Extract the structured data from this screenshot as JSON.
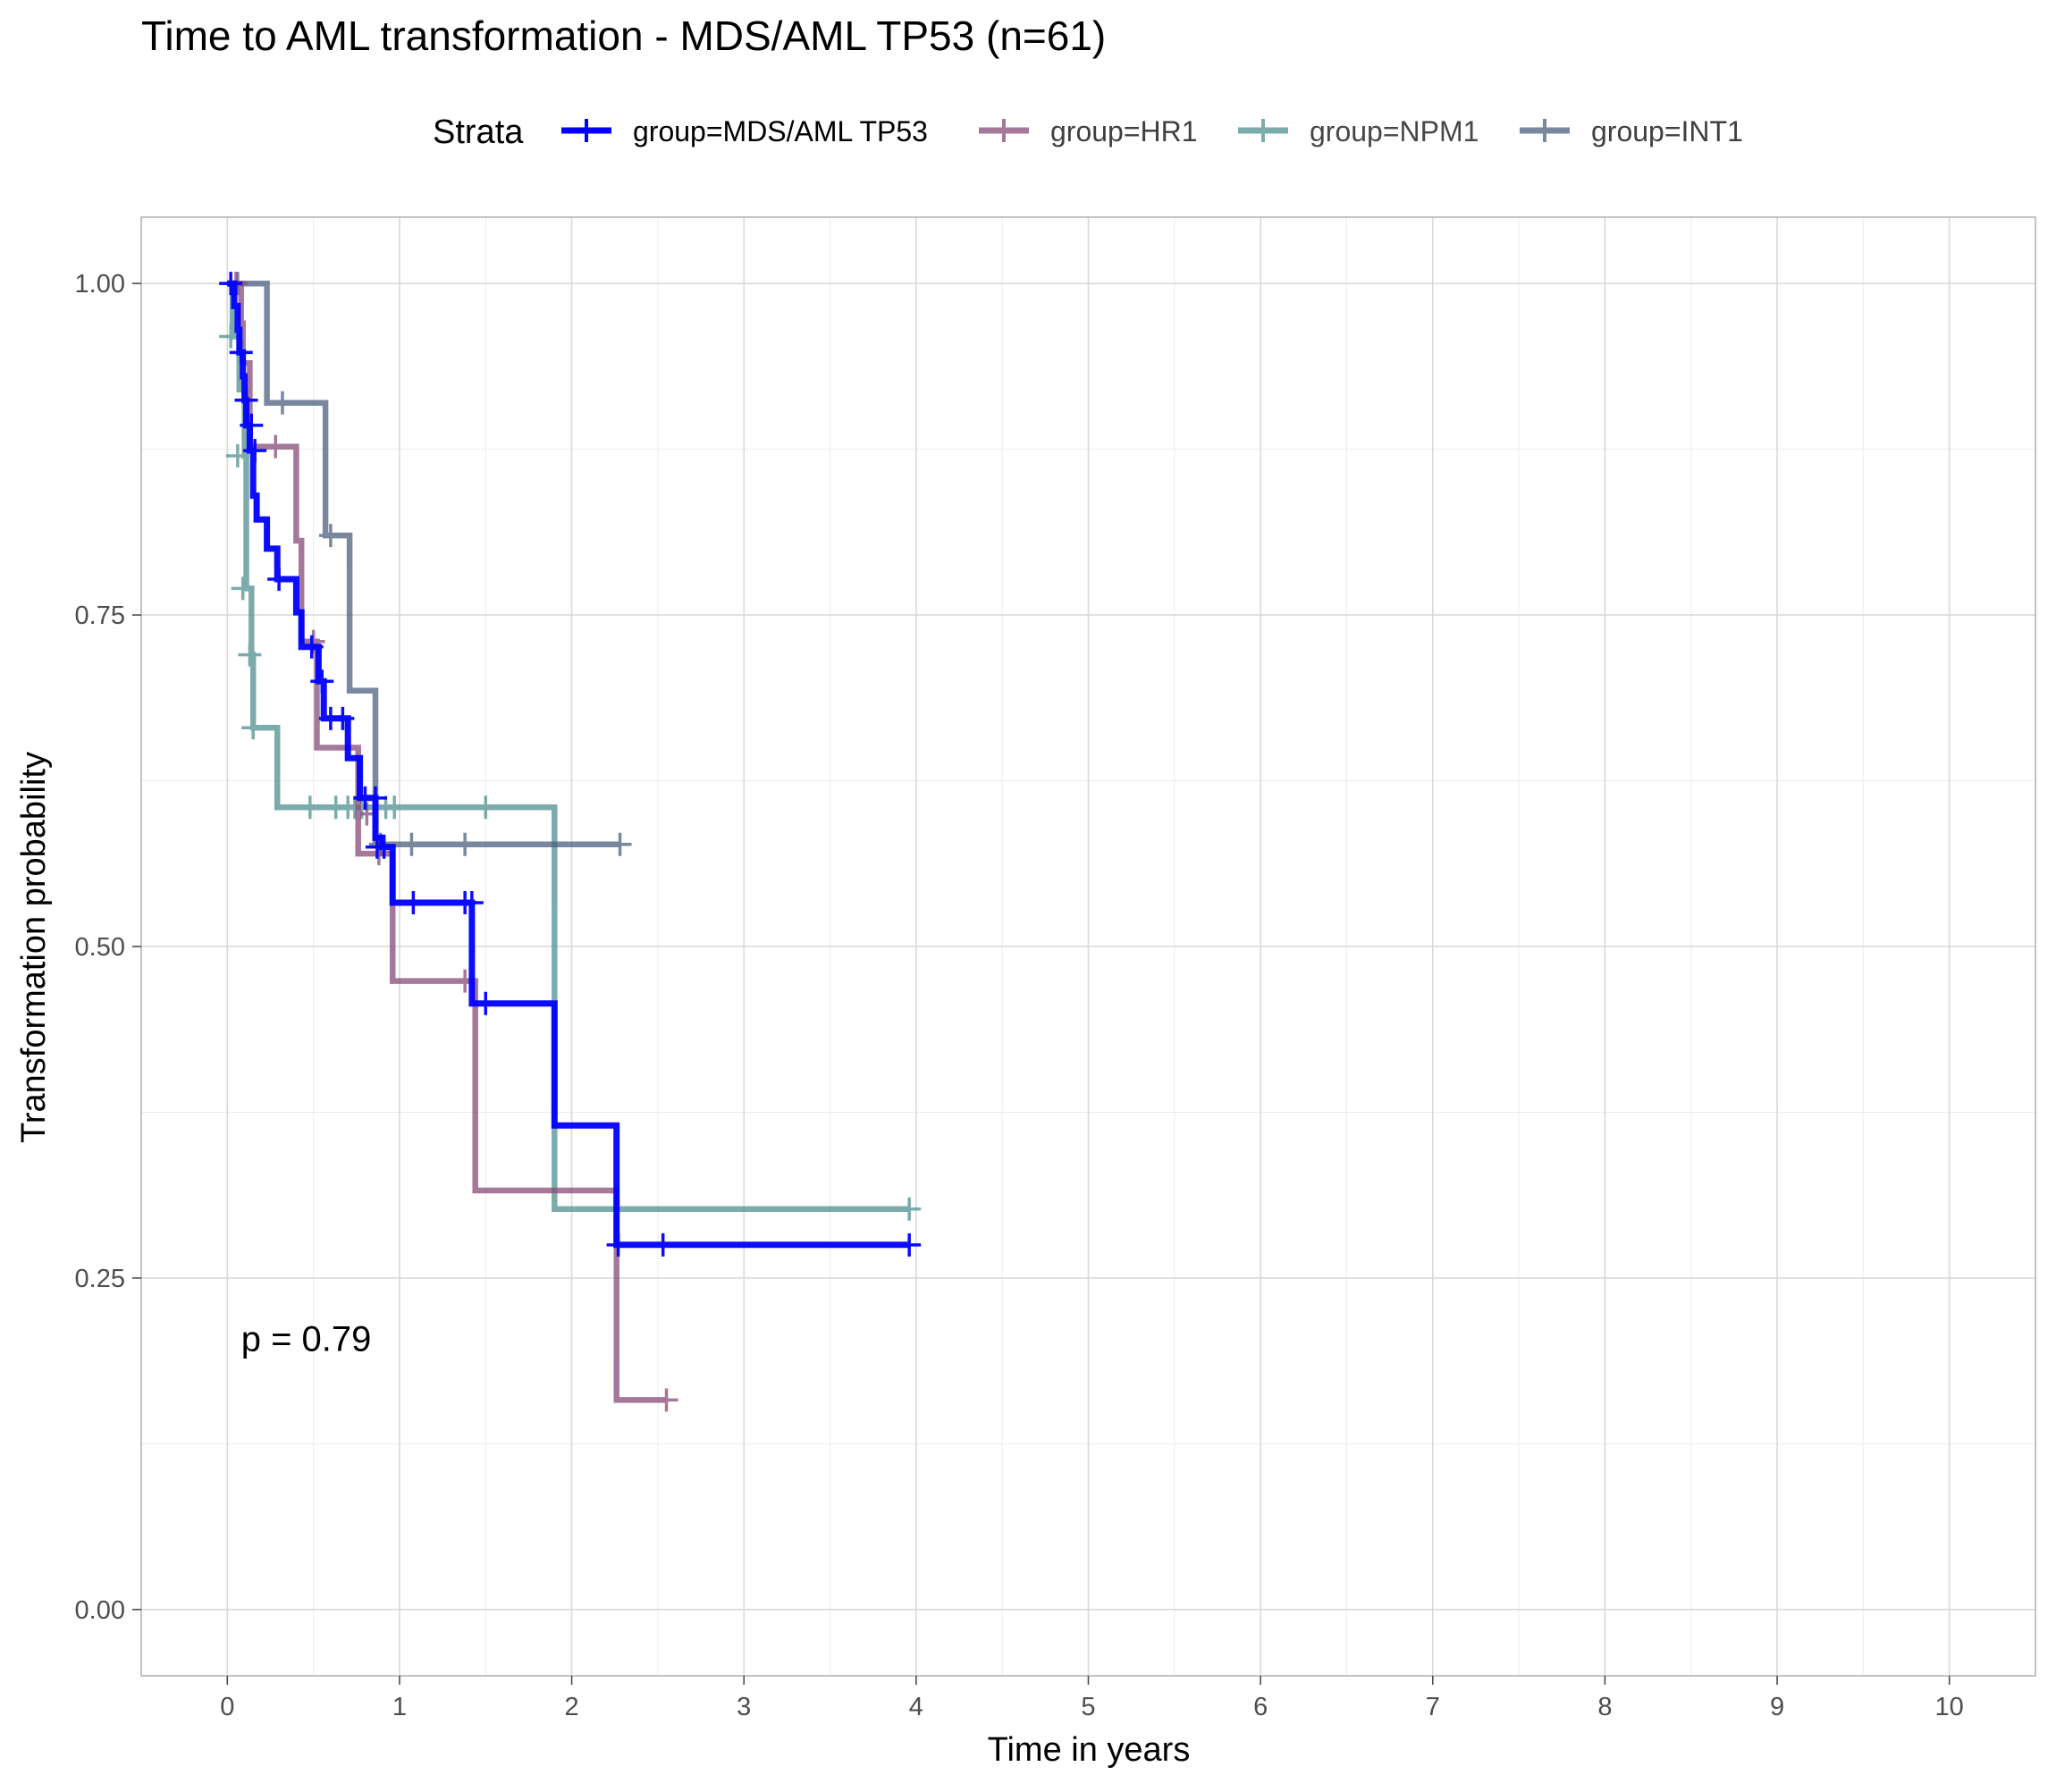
{
  "chart_data": {
    "type": "line",
    "title": "Time to AML transformation - MDS/AML TP53 (n=61)",
    "xlabel": "Time in years",
    "ylabel": "Transformation probability",
    "xlim": [
      -0.5,
      10.5
    ],
    "ylim": [
      -0.05,
      1.05
    ],
    "x_ticks": [
      0,
      1,
      2,
      3,
      4,
      5,
      6,
      7,
      8,
      9,
      10
    ],
    "x_tick_labels": [
      "0",
      "1",
      "2",
      "3",
      "4",
      "5",
      "6",
      "7",
      "8",
      "9",
      "10"
    ],
    "y_ticks": [
      0,
      0.25,
      0.5,
      0.75,
      1
    ],
    "y_tick_labels": [
      "0.00",
      "0.25",
      "0.50",
      "0.75",
      "1.00"
    ],
    "grid": true,
    "legend": {
      "title": "Strata",
      "position": "top",
      "entries": [
        "group=MDS/AML TP53",
        "group=HR1",
        "group=NPM1",
        "group=INT1"
      ]
    },
    "annotation": "p = 0.79",
    "annotation_x": 0.08,
    "annotation_y": 0.195,
    "series": [
      {
        "name": "group=MDS/AML TP53",
        "color": "#0000ff",
        "opacity": 0.95,
        "steps": [
          [
            0,
            1.0
          ],
          [
            0.04,
            0.983
          ],
          [
            0.06,
            0.965
          ],
          [
            0.07,
            0.948
          ],
          [
            0.09,
            0.93
          ],
          [
            0.1,
            0.912
          ],
          [
            0.11,
            0.893
          ],
          [
            0.13,
            0.874
          ],
          [
            0.15,
            0.84
          ],
          [
            0.17,
            0.822
          ],
          [
            0.23,
            0.8
          ],
          [
            0.29,
            0.777
          ],
          [
            0.4,
            0.752
          ],
          [
            0.43,
            0.726
          ],
          [
            0.53,
            0.7
          ],
          [
            0.56,
            0.672
          ],
          [
            0.7,
            0.642
          ],
          [
            0.77,
            0.612
          ],
          [
            0.86,
            0.582
          ],
          [
            0.9,
            0.575
          ],
          [
            0.96,
            0.533
          ],
          [
            1.42,
            0.457
          ],
          [
            1.9,
            0.365
          ],
          [
            2.26,
            0.275
          ],
          [
            3.96,
            0.275
          ]
        ],
        "censors": [
          [
            0.02,
            1.0
          ],
          [
            0.08,
            0.948
          ],
          [
            0.11,
            0.912
          ],
          [
            0.14,
            0.893
          ],
          [
            0.16,
            0.874
          ],
          [
            0.3,
            0.777
          ],
          [
            0.49,
            0.726
          ],
          [
            0.55,
            0.7
          ],
          [
            0.6,
            0.672
          ],
          [
            0.67,
            0.672
          ],
          [
            0.8,
            0.612
          ],
          [
            0.86,
            0.612
          ],
          [
            0.87,
            0.575
          ],
          [
            0.91,
            0.575
          ],
          [
            1.08,
            0.533
          ],
          [
            1.38,
            0.533
          ],
          [
            1.42,
            0.533
          ],
          [
            1.5,
            0.457
          ],
          [
            2.27,
            0.275
          ],
          [
            2.53,
            0.275
          ],
          [
            3.96,
            0.275
          ]
        ]
      },
      {
        "name": "group=HR1",
        "color": "#884c7a",
        "opacity": 0.75,
        "steps": [
          [
            0,
            1.0
          ],
          [
            0.08,
            0.97
          ],
          [
            0.09,
            0.94
          ],
          [
            0.13,
            0.877
          ],
          [
            0.4,
            0.806
          ],
          [
            0.43,
            0.73
          ],
          [
            0.52,
            0.65
          ],
          [
            0.76,
            0.57
          ],
          [
            0.96,
            0.474
          ],
          [
            1.44,
            0.316
          ],
          [
            2.26,
            0.158
          ],
          [
            2.55,
            0.158
          ]
        ],
        "censors": [
          [
            0.05,
            1.0
          ],
          [
            0.28,
            0.877
          ],
          [
            0.5,
            0.73
          ],
          [
            0.81,
            0.6
          ],
          [
            0.88,
            0.57
          ],
          [
            1.38,
            0.474
          ],
          [
            2.55,
            0.158
          ]
        ]
      },
      {
        "name": "group=NPM1",
        "color": "#4a8c8c",
        "opacity": 0.72,
        "steps": [
          [
            0,
            1.0
          ],
          [
            0.03,
            0.96
          ],
          [
            0.07,
            0.92
          ],
          [
            0.1,
            0.87
          ],
          [
            0.11,
            0.77
          ],
          [
            0.14,
            0.72
          ],
          [
            0.15,
            0.665
          ],
          [
            0.29,
            0.605
          ],
          [
            1.9,
            0.605
          ],
          [
            1.9,
            0.302
          ],
          [
            3.96,
            0.302
          ]
        ],
        "censors": [
          [
            0.02,
            0.96
          ],
          [
            0.06,
            0.87
          ],
          [
            0.09,
            0.77
          ],
          [
            0.13,
            0.72
          ],
          [
            0.15,
            0.665
          ],
          [
            0.48,
            0.605
          ],
          [
            0.63,
            0.605
          ],
          [
            0.7,
            0.605
          ],
          [
            0.74,
            0.605
          ],
          [
            0.78,
            0.605
          ],
          [
            0.92,
            0.605
          ],
          [
            0.97,
            0.605
          ],
          [
            1.5,
            0.605
          ],
          [
            3.96,
            0.302
          ]
        ]
      },
      {
        "name": "group=INT1",
        "color": "#4d6080",
        "opacity": 0.75,
        "steps": [
          [
            0,
            1.0
          ],
          [
            0.23,
            0.91
          ],
          [
            0.57,
            0.81
          ],
          [
            0.71,
            0.693
          ],
          [
            0.86,
            0.577
          ],
          [
            2.28,
            0.577
          ]
        ],
        "censors": [
          [
            0.06,
            1.0
          ],
          [
            0.32,
            0.91
          ],
          [
            0.6,
            0.81
          ],
          [
            0.89,
            0.577
          ],
          [
            1.07,
            0.577
          ],
          [
            1.38,
            0.577
          ],
          [
            2.28,
            0.577
          ]
        ]
      }
    ]
  }
}
